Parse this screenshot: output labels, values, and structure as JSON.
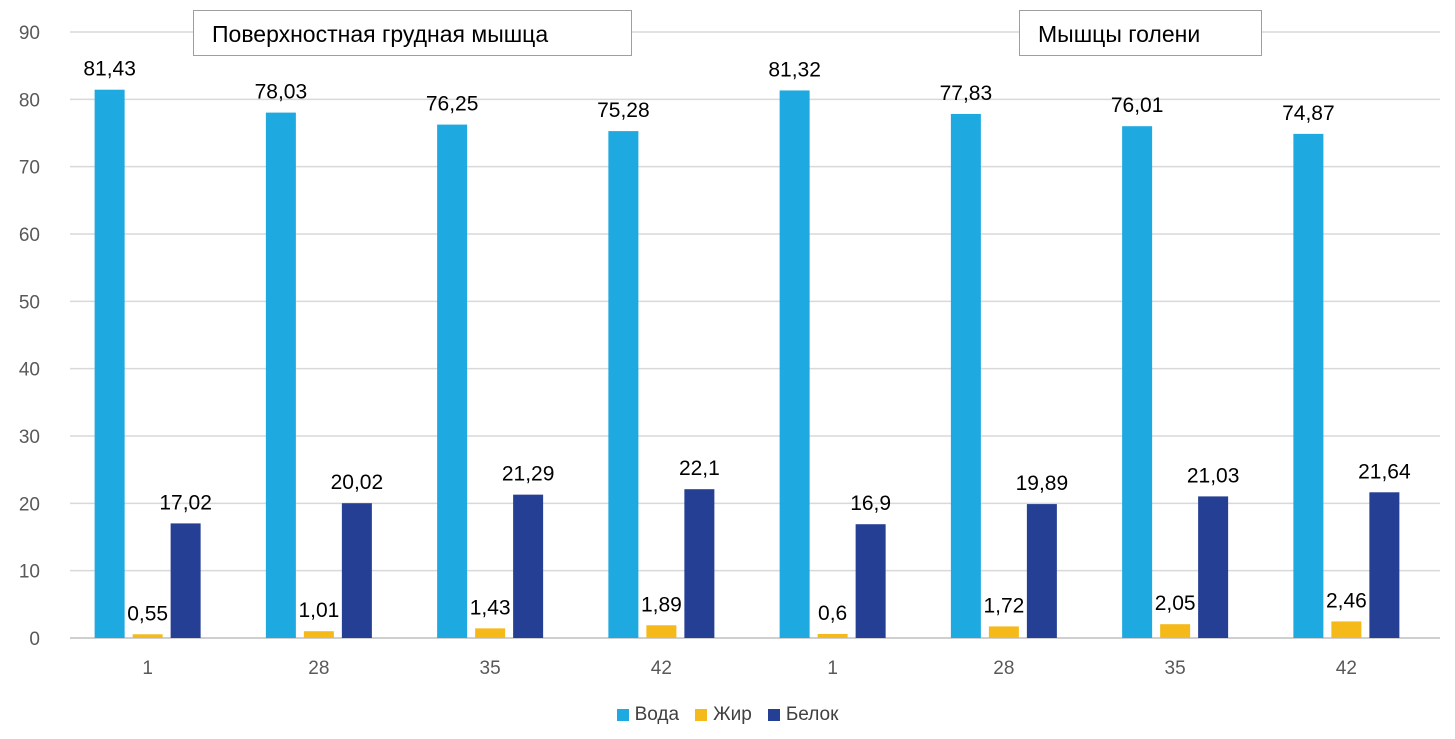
{
  "chart_data": {
    "type": "bar",
    "title": "",
    "xlabel": "",
    "ylabel": "",
    "ylim": [
      0,
      90
    ],
    "yticks": [
      0,
      10,
      20,
      30,
      40,
      50,
      60,
      70,
      80,
      90
    ],
    "groups": [
      "Поверхностная грудная мышца",
      "Мышцы голени"
    ],
    "categories": [
      "1",
      "28",
      "35",
      "42",
      "1",
      "28",
      "35",
      "42"
    ],
    "series": [
      {
        "name": "Вода",
        "color": "#1fa9e1",
        "values": [
          81.43,
          78.03,
          76.25,
          75.28,
          81.32,
          77.83,
          76.01,
          74.87
        ],
        "labels": [
          "81,43",
          "78,03",
          "76,25",
          "75,28",
          "81,32",
          "77,83",
          "76,01",
          "74,87"
        ]
      },
      {
        "name": "Жир",
        "color": "#f6b91a",
        "values": [
          0.55,
          1.01,
          1.43,
          1.89,
          0.6,
          1.72,
          2.05,
          2.46
        ],
        "labels": [
          "0,55",
          "1,01",
          "1,43",
          "1,89",
          "0,6",
          "1,72",
          "2,05",
          "2,46"
        ]
      },
      {
        "name": "Белок",
        "color": "#253f94",
        "values": [
          17.02,
          20.02,
          21.29,
          22.1,
          16.9,
          19.89,
          21.03,
          21.64
        ],
        "labels": [
          "17,02",
          "20,02",
          "21,29",
          "22,1",
          "16,9",
          "19,89",
          "21,03",
          "21,64"
        ]
      }
    ],
    "legend": "bottom",
    "grid": true
  }
}
